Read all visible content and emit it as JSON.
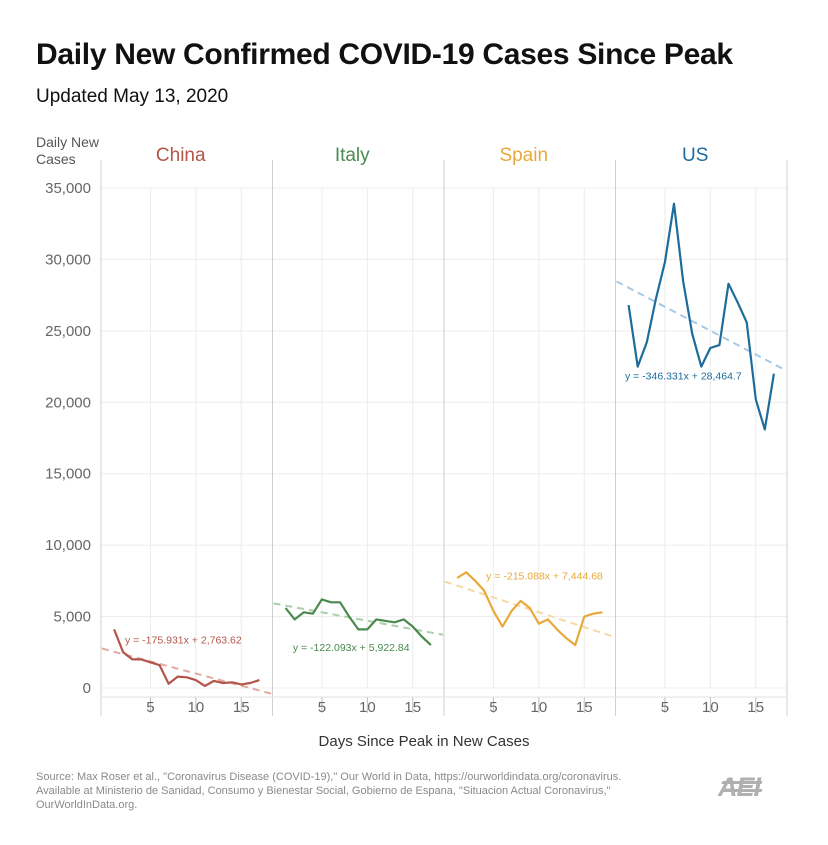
{
  "title": "Daily New Confirmed COVID-19 Cases Since Peak",
  "subtitle": "Updated May 13, 2020",
  "source_lines": [
    "Source: Max Roser et al., \"Coronavirus Disease (COVID-19),\" Our World in Data, https://ourworldindata.org/coronavirus.",
    "Available at Ministerio de Sanidad, Consumo y Bienestar Social, Gobierno de Espana, \"Situacion Actual Coronavirus,\"",
    "OurWorldInData.org."
  ],
  "logo_text": "AEI",
  "chart_data": {
    "type": "line",
    "ylabel": "Daily New Cases",
    "xlabel": "Days Since Peak in New Cases",
    "ylim": [
      0,
      35000
    ],
    "yticks": [
      0,
      5000,
      10000,
      15000,
      20000,
      25000,
      30000,
      35000
    ],
    "ytick_labels": [
      "0",
      "5,000",
      "10,000",
      "15,000",
      "20,000",
      "25,000",
      "30,000",
      "35,000"
    ],
    "xlim": [
      0,
      18
    ],
    "xticks": [
      5,
      10,
      15
    ],
    "xtick_labels": [
      "5",
      "10",
      "15"
    ],
    "grid": true,
    "panels": [
      {
        "name": "China",
        "color": "#b5554a",
        "trend_color": "#e3aaa2",
        "x": [
          1,
          2,
          3,
          4,
          5,
          6,
          7,
          8,
          9,
          10,
          11,
          12,
          13,
          14,
          15,
          16,
          17
        ],
        "y": [
          4100,
          2500,
          2000,
          2000,
          1800,
          1600,
          300,
          800,
          750,
          550,
          150,
          500,
          350,
          400,
          250,
          350,
          550
        ],
        "trend": {
          "slope": -175.931,
          "intercept": 2763.62,
          "label": "y = -175.931x + 2,763.62"
        }
      },
      {
        "name": "Italy",
        "color": "#4a8a4e",
        "trend_color": "#a8cfa9",
        "x": [
          1,
          2,
          3,
          4,
          5,
          6,
          7,
          8,
          9,
          10,
          11,
          12,
          13,
          14,
          15,
          16,
          17
        ],
        "y": [
          5600,
          4800,
          5300,
          5200,
          6200,
          6000,
          6000,
          5000,
          4100,
          4100,
          4800,
          4700,
          4600,
          4800,
          4300,
          3600,
          3000
        ],
        "trend": {
          "slope": -122.093,
          "intercept": 5922.84,
          "label": "y = -122.093x + 5,922.84"
        }
      },
      {
        "name": "Spain",
        "color": "#e8a93a",
        "trend_color": "#f5d9a3",
        "x": [
          1,
          2,
          3,
          4,
          5,
          6,
          7,
          8,
          9,
          10,
          11,
          12,
          13,
          14,
          15,
          16,
          17
        ],
        "y": [
          7700,
          8100,
          7500,
          6800,
          5400,
          4300,
          5400,
          6100,
          5600,
          4500,
          4800,
          4100,
          3500,
          3000,
          5000,
          5200,
          5300
        ],
        "trend": {
          "slope": -215.088,
          "intercept": 7444.68,
          "label": "y = -215.088x + 7,444.68"
        }
      },
      {
        "name": "US",
        "color": "#1d6c9c",
        "trend_color": "#a7c9e4",
        "x": [
          1,
          2,
          3,
          4,
          5,
          6,
          7,
          8,
          9,
          10,
          11,
          12,
          13,
          14,
          15,
          16,
          17
        ],
        "y": [
          26800,
          22500,
          24200,
          27200,
          29800,
          33900,
          28500,
          24800,
          22500,
          23800,
          24000,
          28300,
          27000,
          25600,
          20200,
          18100,
          22000
        ],
        "trend": {
          "slope": -346.331,
          "intercept": 28464.7,
          "label": "y = -346.331x + 28,464.7"
        }
      }
    ]
  }
}
